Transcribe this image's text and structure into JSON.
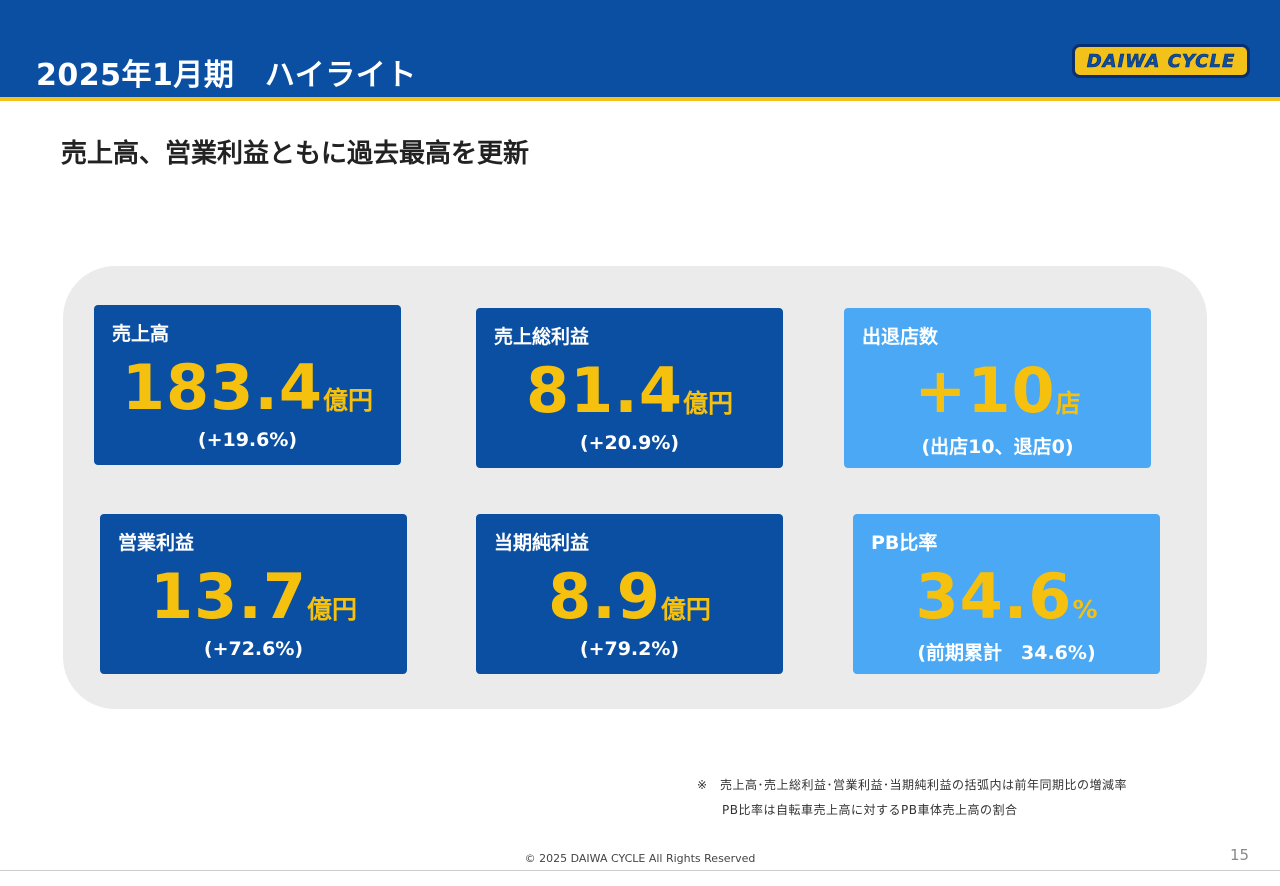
{
  "header": {
    "title": "2025年1月期　ハイライト",
    "logo_text": "DAIWA CYCLE"
  },
  "subtitle": "売上高、営業利益ともに過去最高を更新",
  "colors": {
    "header_blue": "#0b4fa3",
    "accent_yellow": "#f2c21a",
    "card_dark": "#0b4fa3",
    "card_light": "#4aa8f5",
    "value_yellow": "#f6c10e"
  },
  "cards": [
    {
      "label": "売上高",
      "value": "183.4",
      "unit": "億円",
      "note": "(+19.6%)"
    },
    {
      "label": "売上総利益",
      "value": "81.4",
      "unit": "億円",
      "note": "(+20.9%)"
    },
    {
      "label": "出退店数",
      "value": "+10",
      "unit": "店",
      "note": "(出店10、退店0)"
    },
    {
      "label": "営業利益",
      "value": "13.7",
      "unit": "億円",
      "note": "(+72.6%)"
    },
    {
      "label": "当期純利益",
      "value": "8.9",
      "unit": "億円",
      "note": "(+79.2%)"
    },
    {
      "label": "PB比率",
      "value": "34.6",
      "unit": "%",
      "note": "(前期累計　34.6%)"
    }
  ],
  "footnotes": [
    "※　売上高･売上総利益･営業利益･当期純利益の括弧内は前年同期比の増減率",
    "　　PB比率は自転車売上高に対するPB車体売上高の割合"
  ],
  "copyright": "© 2025 DAIWA CYCLE All Rights Reserved",
  "page_number": "15"
}
